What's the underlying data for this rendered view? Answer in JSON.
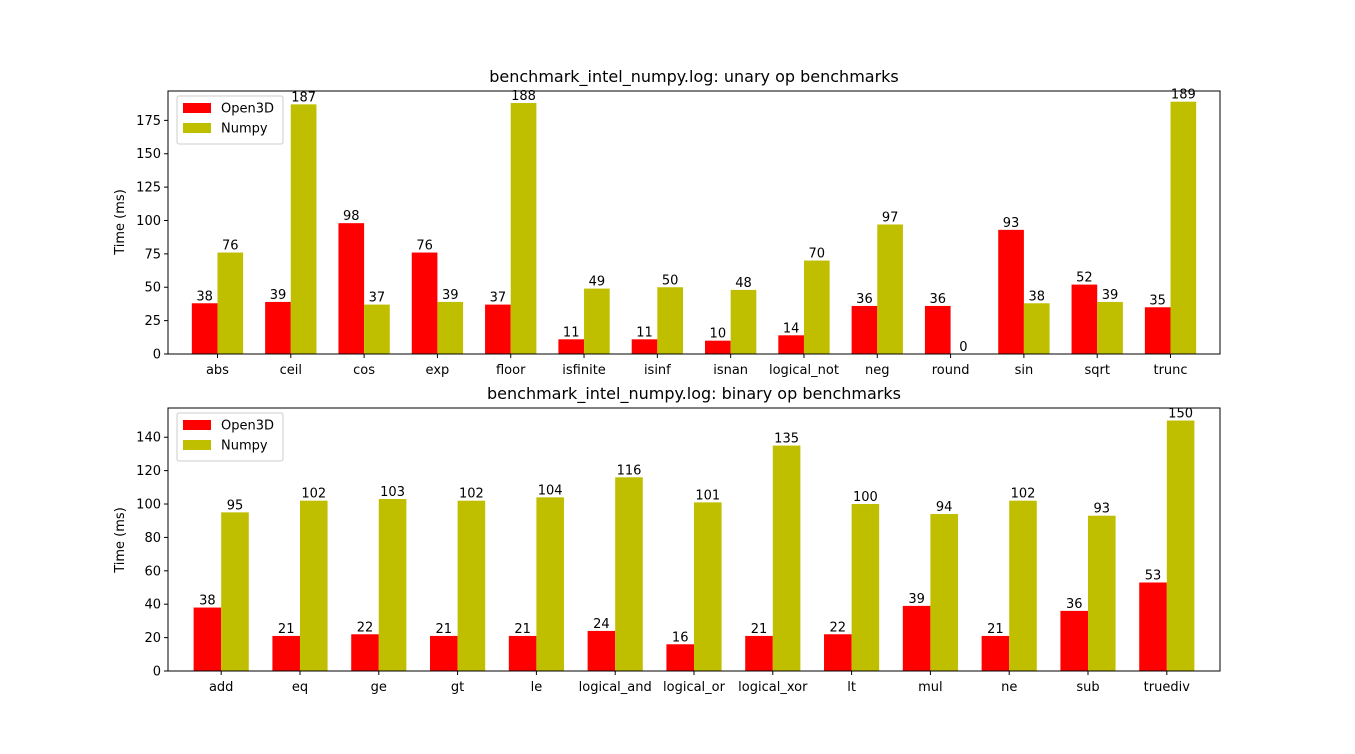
{
  "colors": {
    "open3d": "#ff0000",
    "numpy": "#bfbf00"
  },
  "chart_data": [
    {
      "type": "bar",
      "title": "benchmark_intel_numpy.log: unary op benchmarks",
      "xlabel": "",
      "ylabel": "Time (ms)",
      "ylim": [
        0,
        197
      ],
      "yticks": [
        0,
        25,
        50,
        75,
        100,
        125,
        150,
        175
      ],
      "legend": "top-left",
      "categories": [
        "abs",
        "ceil",
        "cos",
        "exp",
        "floor",
        "isfinite",
        "isinf",
        "isnan",
        "logical_not",
        "neg",
        "round",
        "sin",
        "sqrt",
        "trunc"
      ],
      "series": [
        {
          "name": "Open3D",
          "values": [
            38,
            39,
            98,
            76,
            37,
            11,
            11,
            10,
            14,
            36,
            36,
            93,
            52,
            35
          ],
          "labels": [
            "38",
            "39",
            "98",
            "76",
            "37",
            "11",
            "11",
            "10",
            "14",
            "36",
            "36",
            "93",
            "52",
            "35"
          ]
        },
        {
          "name": "Numpy",
          "values": [
            76,
            187,
            37,
            39,
            188,
            49,
            50,
            48,
            70,
            97,
            0,
            38,
            39,
            189
          ],
          "labels": [
            "76",
            "187",
            "37",
            "39",
            "188",
            "49",
            "50",
            "48",
            "70",
            "97",
            "0",
            "38",
            "39",
            "189"
          ]
        }
      ]
    },
    {
      "type": "bar",
      "title": "benchmark_intel_numpy.log: binary op benchmarks",
      "xlabel": "",
      "ylabel": "Time (ms)",
      "ylim": [
        0,
        157.5
      ],
      "yticks": [
        0,
        20,
        40,
        60,
        80,
        100,
        120,
        140
      ],
      "legend": "top-left",
      "categories": [
        "add",
        "eq",
        "ge",
        "gt",
        "le",
        "logical_and",
        "logical_or",
        "logical_xor",
        "lt",
        "mul",
        "ne",
        "sub",
        "truediv"
      ],
      "series": [
        {
          "name": "Open3D",
          "values": [
            38,
            21,
            22,
            21,
            21,
            24,
            16,
            21,
            22,
            39,
            21,
            36,
            53
          ],
          "labels": [
            "38",
            "21",
            "22",
            "21",
            "21",
            "24",
            "16",
            "21",
            "22",
            "39",
            "21",
            "36",
            "53"
          ]
        },
        {
          "name": "Numpy",
          "values": [
            95,
            102,
            103,
            102,
            104,
            116,
            101,
            135,
            100,
            94,
            102,
            93,
            150
          ],
          "labels": [
            "95",
            "102",
            "103",
            "102",
            "104",
            "116",
            "101",
            "135",
            "100",
            "94",
            "102",
            "93",
            "150"
          ]
        }
      ]
    }
  ]
}
